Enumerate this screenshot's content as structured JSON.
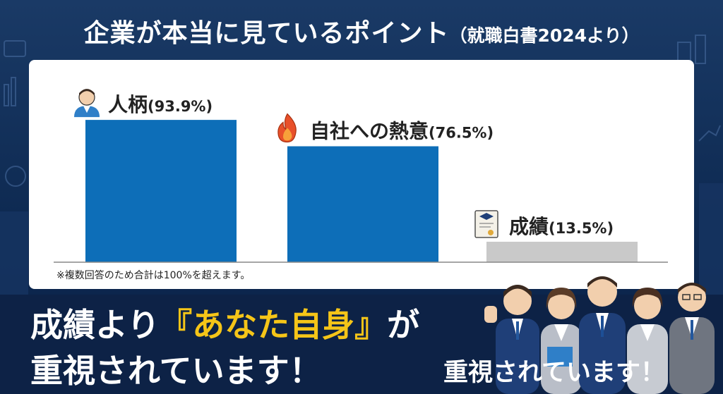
{
  "title": {
    "main": "企業が本当に見ているポイント",
    "sub": "（就職白書2024より）"
  },
  "chart_data": {
    "type": "bar",
    "categories": [
      "人柄",
      "自社への熱意",
      "成績"
    ],
    "values": [
      93.9,
      76.5,
      13.5
    ],
    "value_labels": [
      "(93.9%)",
      "(76.5%)",
      "(13.5%)"
    ],
    "icons": [
      "person-icon",
      "flame-icon",
      "certificate-icon"
    ],
    "colors": [
      "#0d6eb8",
      "#0d6eb8",
      "#c9c9c9"
    ],
    "ylim": [
      0,
      100
    ],
    "grid": false,
    "legend": "none",
    "footnote": "※複数回答のため合計は100%を超えます。"
  },
  "headline": {
    "line1_pre": "成績より",
    "line1_accent": "『あなた自身』",
    "line1_post": "が",
    "line2": "重視されています！",
    "line3": "重視されています！"
  }
}
